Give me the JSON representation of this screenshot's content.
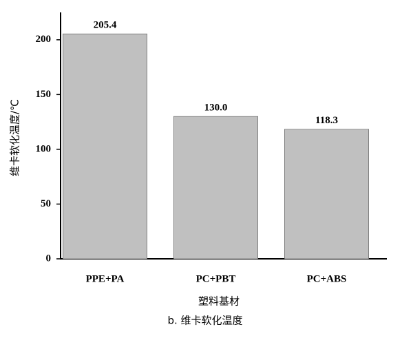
{
  "chart_data": {
    "type": "bar",
    "title": "b. 维卡软化温度",
    "x_label": "塑料基材",
    "y_label": "维卡软化温度/℃",
    "categories": [
      "PPE+PA",
      "PC+PBT",
      "PC+ABS"
    ],
    "values": [
      205.4,
      130.0,
      118.3
    ],
    "value_labels": [
      "205.4",
      "130.0",
      "118.3"
    ],
    "color": "#c0c0c0",
    "ylim": [
      0,
      225
    ],
    "yticks": [
      0,
      50,
      100,
      150,
      200
    ],
    "grid": false
  }
}
